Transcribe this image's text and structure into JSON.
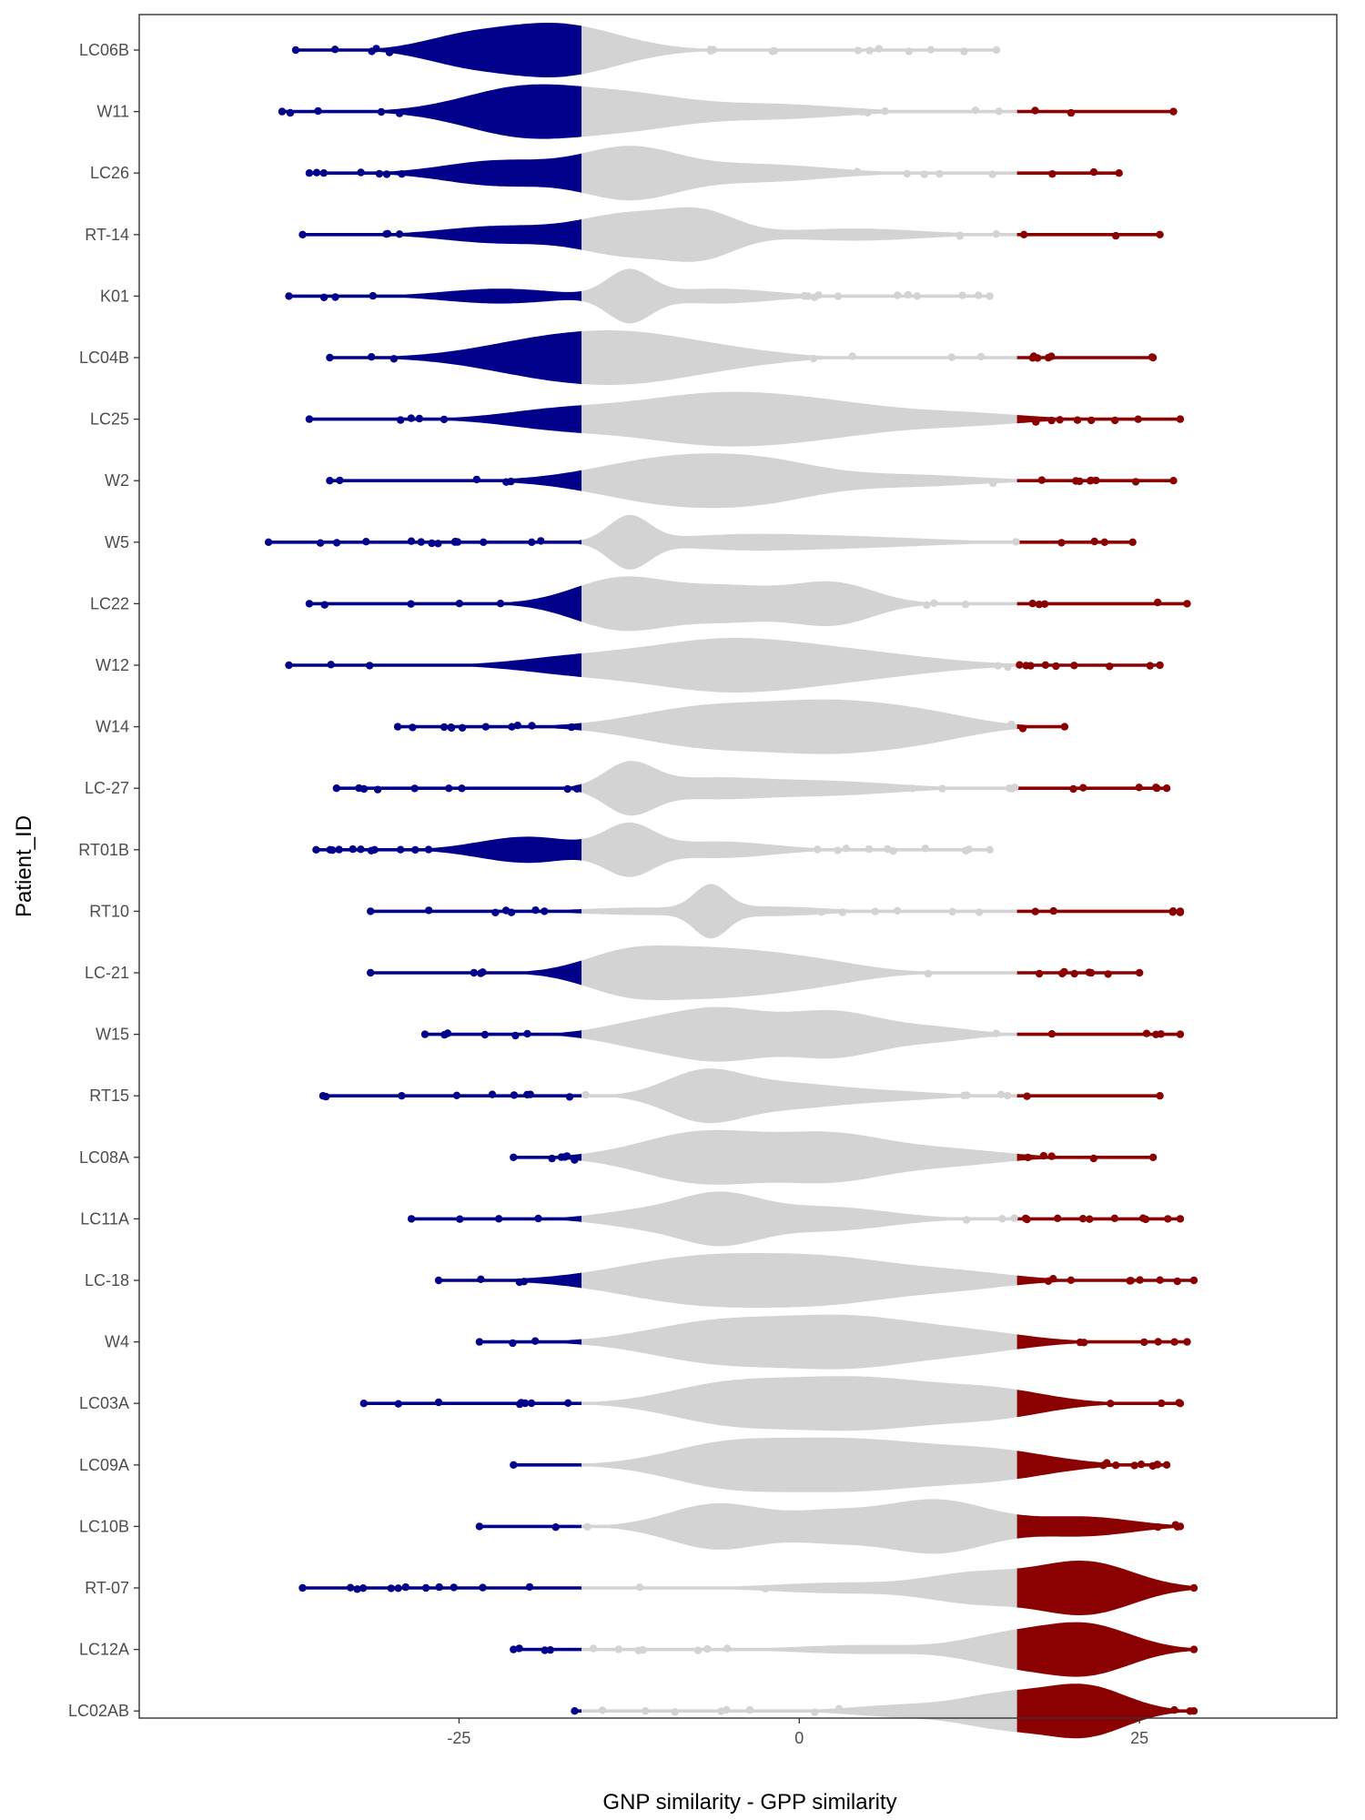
{
  "chart_data": {
    "type": "scatter",
    "subtype": "beeswarm",
    "title": "",
    "xlabel": "GNP similarity - GPP similarity",
    "ylabel": "Patient_ID",
    "xlim": [
      -48.5,
      39.5
    ],
    "x_ticks": [
      -25,
      0,
      25
    ],
    "x_tick_labels": [
      "-25",
      "0",
      "25"
    ],
    "grid": false,
    "legend": "none",
    "colors": {
      "low": "#00008B",
      "mid": "#D3D3D3",
      "high": "#8B0000",
      "frame": "#333333"
    },
    "thresholds": {
      "low_below": -16,
      "high_above": 16
    },
    "categories": [
      "LC06B",
      "W11",
      "LC26",
      "RT-14",
      "K01",
      "LC04B",
      "LC25",
      "W2",
      "W5",
      "LC22",
      "W12",
      "W14",
      "LC-27",
      "RT01B",
      "RT10",
      "LC-21",
      "W15",
      "RT15",
      "LC08A",
      "LC11A",
      "LC-18",
      "W4",
      "LC03A",
      "LC09A",
      "LC10B",
      "RT-07",
      "LC12A",
      "LC02AB"
    ],
    "series": [
      {
        "id": "LC06B",
        "min": -37,
        "max": 14.5,
        "peaks": [
          [
            -18,
            1.0,
            4.5
          ],
          [
            -25,
            0.35,
            3
          ]
        ]
      },
      {
        "id": "W11",
        "min": -38,
        "max": 27.5,
        "peaks": [
          [
            -20,
            1.0,
            4.5
          ],
          [
            -12,
            0.55,
            4
          ],
          [
            -2,
            0.3,
            5
          ]
        ]
      },
      {
        "id": "LC26",
        "min": -36,
        "max": 23.5,
        "peaks": [
          [
            -12.5,
            1.0,
            3.5
          ],
          [
            -22,
            0.5,
            4
          ],
          [
            -3,
            0.35,
            5
          ]
        ]
      },
      {
        "id": "RT-14",
        "min": -36.5,
        "max": 26.5,
        "peaks": [
          [
            -12.5,
            0.85,
            3.5
          ],
          [
            -7,
            0.8,
            2.5
          ],
          [
            -22,
            0.35,
            4
          ],
          [
            4,
            0.25,
            5
          ]
        ]
      },
      {
        "id": "K01",
        "min": -37.5,
        "max": 14,
        "peaks": [
          [
            -12.5,
            1.0,
            1.6
          ],
          [
            -22,
            0.3,
            4
          ],
          [
            -6,
            0.3,
            4
          ]
        ]
      },
      {
        "id": "LC04B",
        "min": -34.5,
        "max": 26,
        "peaks": [
          [
            -17,
            1.0,
            5.5
          ],
          [
            -11,
            0.5,
            4
          ],
          [
            -5,
            0.3,
            4
          ]
        ]
      },
      {
        "id": "LC25",
        "min": -36,
        "max": 28,
        "peaks": [
          [
            -7,
            1.0,
            6
          ],
          [
            2,
            0.6,
            6
          ],
          [
            -18,
            0.35,
            4
          ],
          [
            13,
            0.2,
            4
          ]
        ]
      },
      {
        "id": "W2",
        "min": -34.5,
        "max": 27.5,
        "peaks": [
          [
            -9,
            1.0,
            5.5
          ],
          [
            -2,
            0.5,
            4
          ],
          [
            8,
            0.25,
            5
          ]
        ]
      },
      {
        "id": "W5",
        "min": -39,
        "max": 24.5,
        "peaks": [
          [
            -12.5,
            1.0,
            1.5
          ],
          [
            -5,
            0.25,
            5
          ],
          [
            4,
            0.2,
            6
          ]
        ]
      },
      {
        "id": "LC22",
        "min": -36,
        "max": 28.5,
        "peaks": [
          [
            -13,
            0.95,
            3.5
          ],
          [
            -5,
            0.6,
            3.5
          ],
          [
            2.5,
            0.75,
            3
          ]
        ]
      },
      {
        "id": "W12",
        "min": -37.5,
        "max": 26.5,
        "peaks": [
          [
            -6,
            1.0,
            6
          ],
          [
            4,
            0.45,
            6
          ],
          [
            -17,
            0.25,
            4
          ]
        ]
      },
      {
        "id": "W14",
        "min": -29.5,
        "max": 19.5,
        "peaks": [
          [
            -7,
            0.8,
            5
          ],
          [
            3,
            1.0,
            5
          ],
          [
            10,
            0.3,
            3.5
          ]
        ]
      },
      {
        "id": "LC-27",
        "min": -34,
        "max": 27,
        "peaks": [
          [
            -12.5,
            1.0,
            1.8
          ],
          [
            -7,
            0.4,
            4
          ],
          [
            2,
            0.3,
            5
          ]
        ]
      },
      {
        "id": "RT01B",
        "min": -35.5,
        "max": 14,
        "peaks": [
          [
            -12.5,
            1.0,
            1.8
          ],
          [
            -20,
            0.55,
            3.5
          ],
          [
            -6,
            0.35,
            4
          ]
        ]
      },
      {
        "id": "RT10",
        "min": -31.5,
        "max": 28,
        "peaks": [
          [
            -6.5,
            1.0,
            1.2
          ],
          [
            -2,
            0.2,
            4
          ],
          [
            -12,
            0.15,
            4
          ]
        ]
      },
      {
        "id": "LC-21",
        "min": -31.5,
        "max": 25,
        "peaks": [
          [
            -7,
            1.0,
            5
          ],
          [
            -13,
            0.55,
            3
          ],
          [
            1,
            0.4,
            4
          ]
        ]
      },
      {
        "id": "W15",
        "min": -27.5,
        "max": 28,
        "peaks": [
          [
            -6,
            1.0,
            3.5
          ],
          [
            2.5,
            0.9,
            3.5
          ],
          [
            -12,
            0.35,
            3
          ],
          [
            10,
            0.25,
            3
          ]
        ]
      },
      {
        "id": "RT15",
        "min": -35,
        "max": 26.5,
        "peaks": [
          [
            -7,
            1.0,
            2.8
          ],
          [
            -1,
            0.45,
            3.5
          ],
          [
            6,
            0.2,
            4
          ]
        ]
      },
      {
        "id": "LC08A",
        "min": -21,
        "max": 26,
        "peaks": [
          [
            -7,
            1.0,
            4.5
          ],
          [
            2.5,
            0.85,
            4
          ],
          [
            11,
            0.3,
            4
          ]
        ]
      },
      {
        "id": "LC11A",
        "min": -28.5,
        "max": 28,
        "peaks": [
          [
            -6,
            1.0,
            3
          ],
          [
            2,
            0.5,
            4.5
          ],
          [
            -12,
            0.3,
            3
          ]
        ]
      },
      {
        "id": "LC-18",
        "min": -26.5,
        "max": 29,
        "peaks": [
          [
            -7,
            1.0,
            6
          ],
          [
            3,
            0.75,
            5
          ],
          [
            12,
            0.3,
            4
          ]
        ]
      },
      {
        "id": "W4",
        "min": -23.5,
        "max": 28.5,
        "peaks": [
          [
            -6,
            0.85,
            5
          ],
          [
            4,
            1.0,
            5
          ],
          [
            13,
            0.35,
            4
          ]
        ]
      },
      {
        "id": "LC03A",
        "min": -32,
        "max": 28,
        "peaks": [
          [
            4,
            1.0,
            7
          ],
          [
            -6,
            0.45,
            4
          ],
          [
            15,
            0.3,
            3.5
          ]
        ]
      },
      {
        "id": "LC09A",
        "min": -21,
        "max": 27,
        "peaks": [
          [
            3.5,
            1.0,
            7
          ],
          [
            -6,
            0.5,
            4
          ],
          [
            15,
            0.35,
            4
          ]
        ]
      },
      {
        "id": "LC10B",
        "min": -23.5,
        "max": 28,
        "peaks": [
          [
            -6,
            0.85,
            3.5
          ],
          [
            10,
            1.0,
            4
          ],
          [
            2,
            0.45,
            3
          ],
          [
            21,
            0.35,
            3.5
          ]
        ]
      },
      {
        "id": "RT-07",
        "min": -36.5,
        "max": 29,
        "peaks": [
          [
            21,
            1.0,
            3.5
          ],
          [
            13,
            0.55,
            3.5
          ],
          [
            3,
            0.2,
            5
          ]
        ]
      },
      {
        "id": "LC12A",
        "min": -21,
        "max": 29,
        "peaks": [
          [
            21,
            1.0,
            3.3
          ],
          [
            15,
            0.5,
            3
          ],
          [
            5,
            0.18,
            5
          ]
        ]
      },
      {
        "id": "LC02AB",
        "min": -16.5,
        "max": 29,
        "peaks": [
          [
            21,
            1.0,
            3
          ],
          [
            15,
            0.6,
            3
          ],
          [
            8,
            0.25,
            4
          ]
        ]
      }
    ]
  }
}
